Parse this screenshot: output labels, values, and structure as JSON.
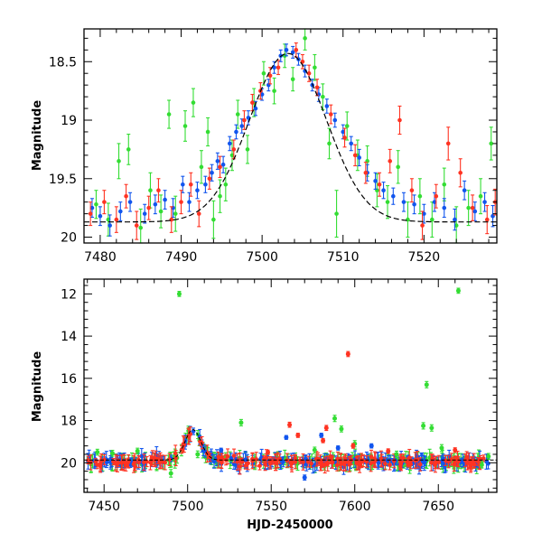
{
  "chart_data": [
    {
      "type": "scatter",
      "title": "",
      "xlabel": "",
      "ylabel": "Magnitude",
      "xlim": [
        7478,
        7529
      ],
      "ylim": [
        20.05,
        18.22
      ],
      "y_inverted": true,
      "grid": false,
      "x_ticks": [
        7480,
        7490,
        7500,
        7510,
        7520
      ],
      "y_ticks": [
        18.5,
        19,
        19.5,
        20
      ],
      "x_tick_labels": [
        "7480",
        "7490",
        "7500",
        "7510",
        "7520"
      ],
      "y_tick_labels": [
        "18.5",
        "19",
        "19.5",
        "20"
      ],
      "colors": [
        "#33dd33",
        "#1155ee",
        "#ff3322"
      ],
      "model_curve": {
        "color": "#000000",
        "baseline": 19.87,
        "t0": 7503.2,
        "peak": 18.43,
        "tE": 9.5
      },
      "series": [
        {
          "color": "#33dd33",
          "points": [
            [
              7479.5,
              19.72,
              0.12
            ],
            [
              7481.0,
              19.85,
              0.14
            ],
            [
              7482.3,
              19.35,
              0.15
            ],
            [
              7483.5,
              19.25,
              0.13
            ],
            [
              7485.0,
              19.92,
              0.16
            ],
            [
              7486.2,
              19.6,
              0.15
            ],
            [
              7487.5,
              19.78,
              0.14
            ],
            [
              7488.5,
              18.95,
              0.12
            ],
            [
              7489.3,
              19.8,
              0.15
            ],
            [
              7490.5,
              19.05,
              0.13
            ],
            [
              7491.5,
              18.85,
              0.12
            ],
            [
              7492.5,
              19.4,
              0.14
            ],
            [
              7493.3,
              19.1,
              0.12
            ],
            [
              7494.0,
              19.85,
              0.16
            ],
            [
              7494.8,
              19.65,
              0.14
            ],
            [
              7495.5,
              19.55,
              0.14
            ],
            [
              7496.3,
              19.3,
              0.13
            ],
            [
              7497.0,
              18.95,
              0.12
            ],
            [
              7498.2,
              19.25,
              0.12
            ],
            [
              7499.0,
              18.85,
              0.12
            ],
            [
              7500.2,
              18.6,
              0.1
            ],
            [
              7501.5,
              18.75,
              0.11
            ],
            [
              7502.8,
              18.45,
              0.1
            ],
            [
              7503.8,
              18.65,
              0.1
            ],
            [
              7505.3,
              18.3,
              0.1
            ],
            [
              7506.5,
              18.55,
              0.11
            ],
            [
              7507.5,
              18.8,
              0.11
            ],
            [
              7508.3,
              19.2,
              0.13
            ],
            [
              7509.2,
              19.8,
              0.2
            ],
            [
              7510.5,
              19.05,
              0.12
            ],
            [
              7511.8,
              19.3,
              0.13
            ],
            [
              7513.0,
              19.35,
              0.13
            ],
            [
              7514.2,
              19.6,
              0.14
            ],
            [
              7515.5,
              19.7,
              0.14
            ],
            [
              7516.8,
              19.4,
              0.14
            ],
            [
              7518.0,
              19.85,
              0.15
            ],
            [
              7519.5,
              19.65,
              0.15
            ],
            [
              7521.0,
              19.85,
              0.15
            ],
            [
              7522.5,
              19.55,
              0.14
            ],
            [
              7524.0,
              19.9,
              0.16
            ],
            [
              7525.5,
              19.75,
              0.15
            ],
            [
              7527.0,
              19.65,
              0.15
            ],
            [
              7528.3,
              19.2,
              0.14
            ]
          ]
        },
        {
          "color": "#1155ee",
          "points": [
            [
              7479.0,
              19.75,
              0.08
            ],
            [
              7480.0,
              19.82,
              0.08
            ],
            [
              7481.2,
              19.9,
              0.09
            ],
            [
              7482.5,
              19.78,
              0.08
            ],
            [
              7483.7,
              19.7,
              0.08
            ],
            [
              7485.5,
              19.8,
              0.08
            ],
            [
              7486.8,
              19.72,
              0.08
            ],
            [
              7488.0,
              19.68,
              0.08
            ],
            [
              7489.0,
              19.75,
              0.08
            ],
            [
              7490.2,
              19.55,
              0.07
            ],
            [
              7491.0,
              19.7,
              0.08
            ],
            [
              7492.0,
              19.6,
              0.07
            ],
            [
              7493.0,
              19.55,
              0.07
            ],
            [
              7493.8,
              19.45,
              0.07
            ],
            [
              7494.5,
              19.35,
              0.07
            ],
            [
              7495.2,
              19.38,
              0.07
            ],
            [
              7496.0,
              19.2,
              0.06
            ],
            [
              7496.8,
              19.1,
              0.06
            ],
            [
              7497.5,
              19.05,
              0.06
            ],
            [
              7498.3,
              18.98,
              0.06
            ],
            [
              7499.2,
              18.9,
              0.06
            ],
            [
              7500.0,
              18.78,
              0.05
            ],
            [
              7500.8,
              18.7,
              0.05
            ],
            [
              7501.5,
              18.55,
              0.05
            ],
            [
              7502.3,
              18.45,
              0.05
            ],
            [
              7503.0,
              18.4,
              0.05
            ],
            [
              7503.8,
              18.42,
              0.05
            ],
            [
              7504.5,
              18.48,
              0.05
            ],
            [
              7505.3,
              18.58,
              0.05
            ],
            [
              7506.2,
              18.7,
              0.05
            ],
            [
              7507.0,
              18.78,
              0.06
            ],
            [
              7508.0,
              18.88,
              0.06
            ],
            [
              7509.0,
              19.0,
              0.06
            ],
            [
              7510.0,
              19.1,
              0.06
            ],
            [
              7511.0,
              19.2,
              0.06
            ],
            [
              7512.0,
              19.32,
              0.07
            ],
            [
              7513.0,
              19.45,
              0.07
            ],
            [
              7514.0,
              19.52,
              0.07
            ],
            [
              7515.0,
              19.6,
              0.07
            ],
            [
              7516.2,
              19.65,
              0.07
            ],
            [
              7517.5,
              19.7,
              0.08
            ],
            [
              7518.8,
              19.72,
              0.08
            ],
            [
              7520.0,
              19.8,
              0.08
            ],
            [
              7521.3,
              19.7,
              0.08
            ],
            [
              7522.5,
              19.75,
              0.08
            ],
            [
              7523.8,
              19.85,
              0.09
            ],
            [
              7525.0,
              19.6,
              0.08
            ],
            [
              7526.3,
              19.78,
              0.08
            ],
            [
              7527.5,
              19.7,
              0.08
            ],
            [
              7528.5,
              19.82,
              0.09
            ]
          ]
        },
        {
          "color": "#ff3322",
          "points": [
            [
              7478.8,
              19.8,
              0.1
            ],
            [
              7480.5,
              19.7,
              0.1
            ],
            [
              7482.0,
              19.85,
              0.11
            ],
            [
              7483.2,
              19.65,
              0.1
            ],
            [
              7484.5,
              19.9,
              0.12
            ],
            [
              7486.0,
              19.75,
              0.1
            ],
            [
              7487.2,
              19.6,
              0.1
            ],
            [
              7488.8,
              19.85,
              0.11
            ],
            [
              7490.0,
              19.7,
              0.1
            ],
            [
              7491.2,
              19.55,
              0.1
            ],
            [
              7492.2,
              19.8,
              0.11
            ],
            [
              7493.5,
              19.5,
              0.09
            ],
            [
              7494.8,
              19.4,
              0.09
            ],
            [
              7496.5,
              19.25,
              0.08
            ],
            [
              7497.8,
              19.0,
              0.08
            ],
            [
              7498.8,
              18.85,
              0.07
            ],
            [
              7499.8,
              18.75,
              0.07
            ],
            [
              7501.0,
              18.62,
              0.07
            ],
            [
              7502.0,
              18.55,
              0.06
            ],
            [
              7504.2,
              18.4,
              0.06
            ],
            [
              7505.0,
              18.5,
              0.06
            ],
            [
              7505.8,
              18.6,
              0.07
            ],
            [
              7506.8,
              18.72,
              0.07
            ],
            [
              7508.5,
              18.95,
              0.08
            ],
            [
              7510.2,
              19.15,
              0.08
            ],
            [
              7511.5,
              19.3,
              0.09
            ],
            [
              7512.8,
              19.45,
              0.09
            ],
            [
              7514.5,
              19.55,
              0.1
            ],
            [
              7515.8,
              19.35,
              0.1
            ],
            [
              7517.0,
              19.0,
              0.12
            ],
            [
              7518.5,
              19.6,
              0.1
            ],
            [
              7519.8,
              19.9,
              0.12
            ],
            [
              7521.5,
              19.65,
              0.1
            ],
            [
              7523.0,
              19.2,
              0.14
            ],
            [
              7524.5,
              19.45,
              0.12
            ],
            [
              7526.0,
              19.75,
              0.11
            ],
            [
              7527.8,
              19.85,
              0.12
            ],
            [
              7528.8,
              19.7,
              0.11
            ]
          ]
        }
      ]
    },
    {
      "type": "scatter",
      "title": "",
      "xlabel": "HJD-2450000",
      "ylabel": "Magnitude",
      "xlim": [
        7438,
        7685
      ],
      "ylim": [
        21.4,
        11.3
      ],
      "y_inverted": true,
      "grid": false,
      "x_ticks": [
        7450,
        7500,
        7550,
        7600,
        7650
      ],
      "y_ticks": [
        12,
        14,
        16,
        18,
        20
      ],
      "x_tick_labels": [
        "7450",
        "7500",
        "7550",
        "7600",
        "7650"
      ],
      "y_tick_labels": [
        "12",
        "14",
        "16",
        "18",
        "20"
      ],
      "colors": [
        "#33dd33",
        "#1155ee",
        "#ff3322"
      ],
      "model_curve": {
        "color": "#000000",
        "baseline": 19.87,
        "t0": 7503.2,
        "peak": 18.43,
        "tE": 9.5
      },
      "baseline_band": {
        "x_range": [
          7440,
          7680
        ],
        "center": 19.95,
        "spread": 0.35,
        "count_per_series": 180
      },
      "series": [
        {
          "color": "#33dd33",
          "points": [
            [
              7495,
              12.0,
              0.12
            ],
            [
              7662,
              11.85,
              0.12
            ],
            [
              7643,
              16.3,
              0.15
            ],
            [
              7532,
              18.1,
              0.15
            ],
            [
              7588,
              17.9,
              0.15
            ],
            [
              7592,
              18.4,
              0.14
            ],
            [
              7641,
              18.25,
              0.15
            ],
            [
              7646,
              18.35,
              0.15
            ],
            [
              7652,
              19.3,
              0.16
            ],
            [
              7600,
              19.1,
              0.15
            ],
            [
              7455,
              19.55,
              0.14
            ],
            [
              7470,
              19.45,
              0.14
            ],
            [
              7490,
              20.5,
              0.18
            ],
            [
              7506,
              19.6,
              0.16
            ],
            [
              7680,
              19.7,
              0.14
            ],
            [
              7446,
              19.5,
              0.14
            ],
            [
              7576,
              19.4,
              0.14
            ],
            [
              7625,
              19.6,
              0.15
            ],
            [
              7676,
              20.1,
              0.15
            ]
          ]
        },
        {
          "color": "#1155ee",
          "points": [
            [
              7580,
              18.7,
              0.1
            ],
            [
              7590,
              19.3,
              0.1
            ],
            [
              7559,
              18.8,
              0.09
            ],
            [
              7570,
              20.7,
              0.12
            ],
            [
              7610,
              19.2,
              0.1
            ],
            [
              7520,
              19.4,
              0.09
            ]
          ]
        },
        {
          "color": "#ff3322",
          "points": [
            [
              7596,
              14.85,
              0.12
            ],
            [
              7561,
              18.2,
              0.12
            ],
            [
              7566,
              18.7,
              0.1
            ],
            [
              7581,
              18.95,
              0.1
            ],
            [
              7583,
              18.35,
              0.12
            ],
            [
              7599,
              19.2,
              0.11
            ],
            [
              7620,
              19.45,
              0.11
            ],
            [
              7548,
              19.5,
              0.1
            ],
            [
              7660,
              19.4,
              0.11
            ]
          ]
        }
      ]
    }
  ]
}
